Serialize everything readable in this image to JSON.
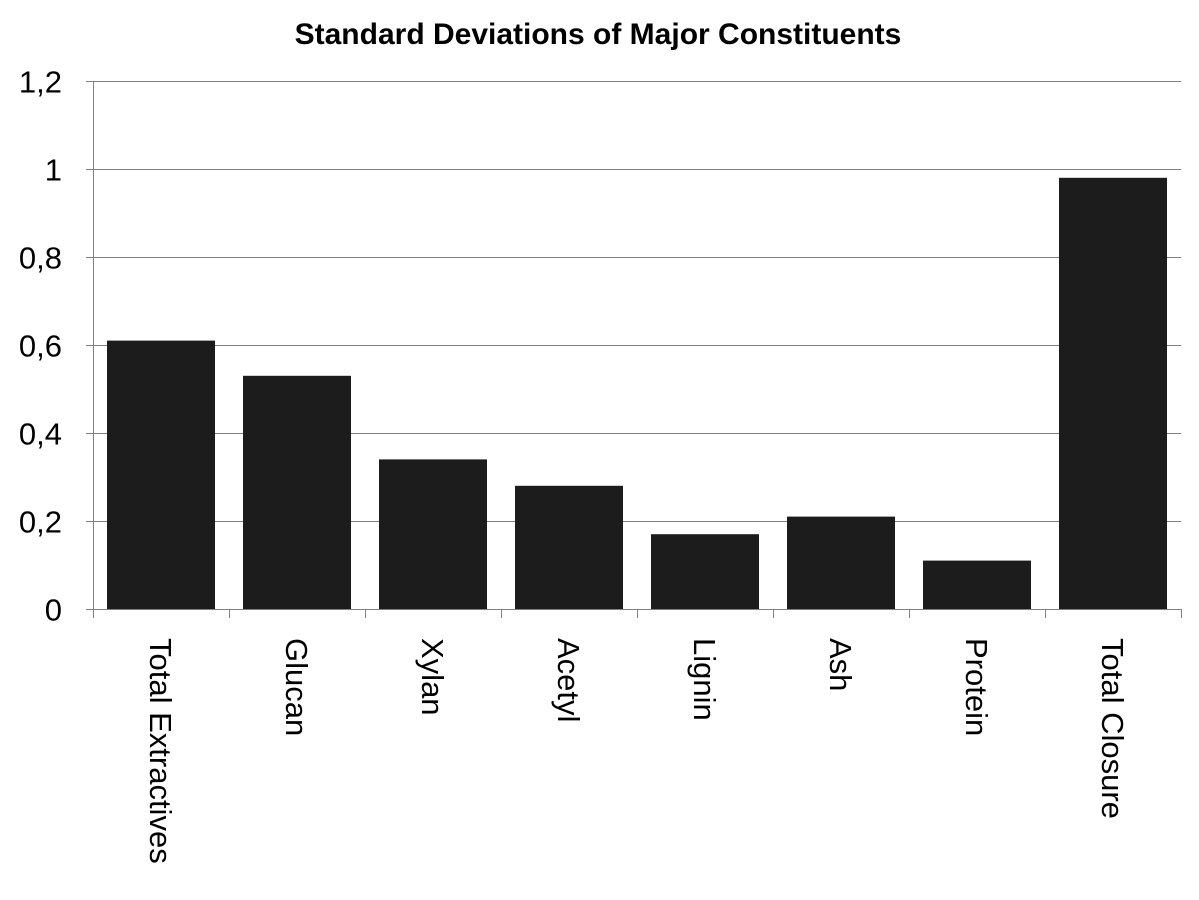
{
  "chart_data": {
    "type": "bar",
    "title": "Standard Deviations of Major Constituents",
    "xlabel": "",
    "ylabel": "",
    "categories": [
      "Total Extractives",
      "Glucan",
      "Xylan",
      "Acetyl",
      "Lignin",
      "Ash",
      "Protein",
      "Total Closure"
    ],
    "values": [
      0.61,
      0.53,
      0.34,
      0.28,
      0.17,
      0.21,
      0.11,
      0.98
    ],
    "ylim": [
      0,
      1.2
    ],
    "yticks": [
      0,
      0.2,
      0.4,
      0.6,
      0.8,
      1.0,
      1.2
    ],
    "ytick_labels": [
      "0",
      "0,2",
      "0,4",
      "0,6",
      "0,8",
      "1",
      "1,2"
    ],
    "grid": true,
    "legend": "none",
    "bar_color": "#1c1c1c",
    "grid_color": "#808080",
    "axis_color": "#808080"
  }
}
